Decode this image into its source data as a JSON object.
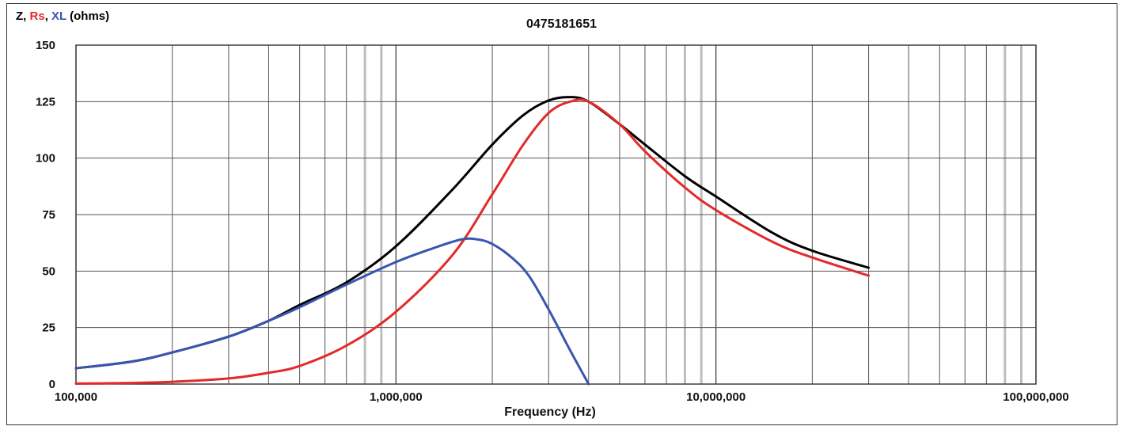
{
  "chart_data": {
    "type": "line",
    "title": "0475181651",
    "ylabel_parts": [
      {
        "text": "Z",
        "color": "#000000"
      },
      {
        "text": ", ",
        "color": "#000000"
      },
      {
        "text": "Rs",
        "color": "#e32a2a"
      },
      {
        "text": ", ",
        "color": "#000000"
      },
      {
        "text": "XL",
        "color": "#3a55b0"
      },
      {
        "text": " (ohms)",
        "color": "#000000"
      }
    ],
    "xlabel": "Frequency (Hz)",
    "xscale": "log",
    "xlim": [
      100000,
      100000000
    ],
    "ylim": [
      0,
      150
    ],
    "yticks": [
      0,
      25,
      50,
      75,
      100,
      125,
      150
    ],
    "xtick_labels": [
      {
        "value": 100000,
        "label": "100,000"
      },
      {
        "value": 1000000,
        "label": "1,000,000"
      },
      {
        "value": 10000000,
        "label": "10,000,000"
      },
      {
        "value": 100000000,
        "label": "100,000,000"
      }
    ],
    "grid": true,
    "series": [
      {
        "name": "Z",
        "color": "#000000",
        "x": [
          100000,
          150000,
          200000,
          300000,
          400000,
          500000,
          700000,
          1000000,
          1500000,
          2000000,
          2500000,
          3000000,
          3500000,
          4000000,
          5000000,
          6000000,
          8000000,
          10000000,
          15000000,
          20000000,
          30000000
        ],
        "y": [
          7,
          10,
          14,
          21,
          28,
          35,
          45,
          61,
          86,
          106,
          119,
          125.5,
          127,
          125,
          115,
          106,
          92,
          83,
          67,
          59,
          51.5
        ]
      },
      {
        "name": "Rs",
        "color": "#e32a2a",
        "x": [
          100000,
          150000,
          200000,
          300000,
          400000,
          500000,
          700000,
          1000000,
          1500000,
          2000000,
          2500000,
          3000000,
          3500000,
          4000000,
          5000000,
          6000000,
          8000000,
          10000000,
          15000000,
          20000000,
          30000000
        ],
        "y": [
          0.2,
          0.5,
          1,
          2.5,
          5,
          8,
          17,
          32,
          57,
          84,
          106,
          120,
          125,
          125,
          115,
          103,
          87,
          77,
          63,
          56,
          48
        ]
      },
      {
        "name": "XL",
        "color": "#3a55b0",
        "x": [
          100000,
          150000,
          200000,
          300000,
          400000,
          500000,
          700000,
          1000000,
          1300000,
          1600000,
          1800000,
          2000000,
          2300000,
          2600000,
          3000000,
          3500000,
          4000000
        ],
        "y": [
          7,
          10,
          14,
          21,
          28,
          34,
          44,
          54,
          60,
          64,
          64,
          62,
          56,
          48,
          33,
          15,
          0
        ]
      }
    ]
  }
}
